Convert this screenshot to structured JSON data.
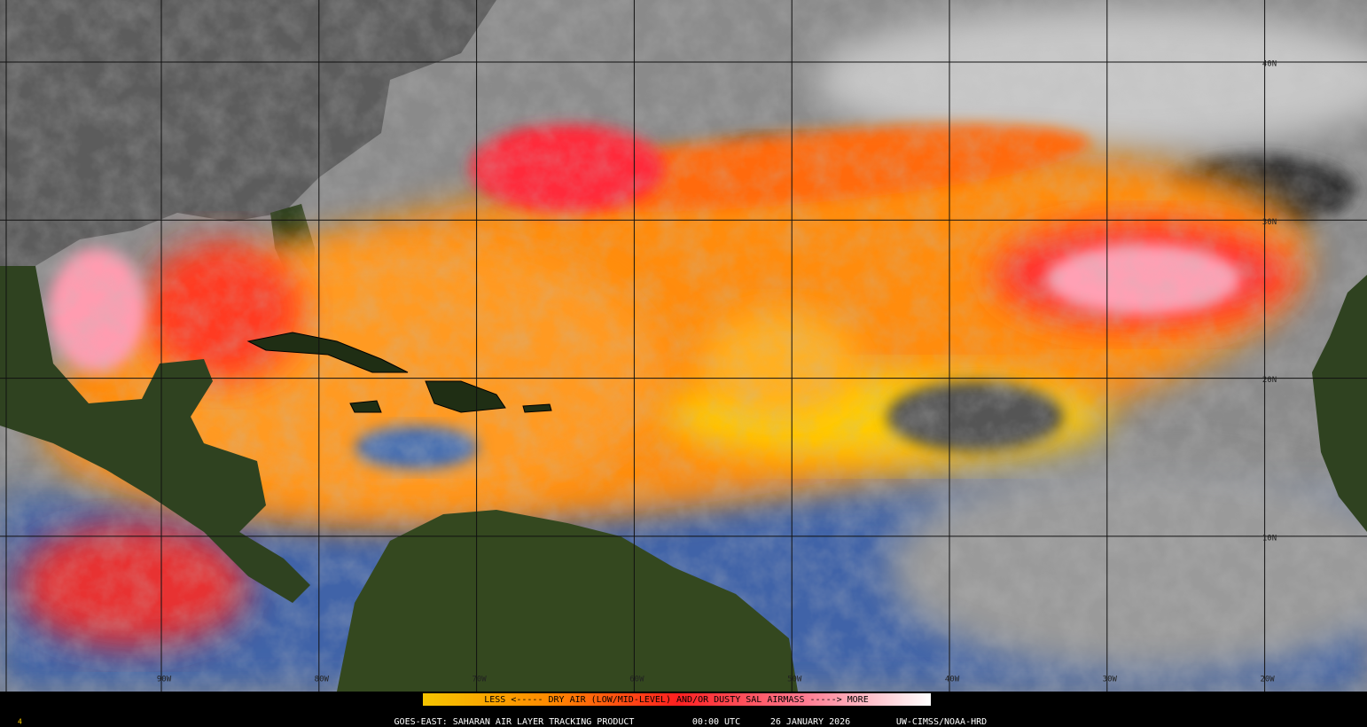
{
  "map": {
    "lat_labels": [
      "40N",
      "30N",
      "20N",
      "10N"
    ],
    "lon_labels": [
      "90W",
      "80W",
      "70W",
      "60W",
      "50W",
      "40W",
      "30W",
      "20W"
    ],
    "legend": "LESS <----- DRY AIR (LOW/MID-LEVEL) AND/OR DUSTY SAL AIRMASS -----> MORE",
    "footer": {
      "frame": "4",
      "product": "GOES-EAST: SAHARAN AIR LAYER TRACKING PRODUCT",
      "time": "00:00 UTC",
      "date": "26 JANUARY 2026",
      "credit": "UW-CIMSS/NOAA-HRD"
    }
  }
}
